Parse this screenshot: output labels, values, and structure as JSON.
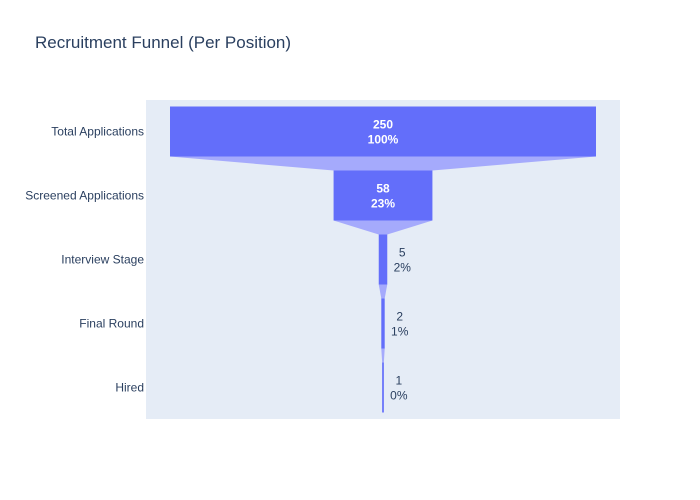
{
  "chart_data": {
    "type": "funnel",
    "title": "Recruitment Funnel (Per Position)",
    "categories": [
      "Total Applications",
      "Screened Applications",
      "Interview Stage",
      "Final Round",
      "Hired"
    ],
    "values": [
      250,
      58,
      5,
      2,
      1
    ],
    "percent_labels": [
      "100%",
      "23%",
      "2%",
      "1%",
      "0%"
    ],
    "bar_color": "#636efa",
    "connector_color": "#a5aafc",
    "plot_background": "#e5ecf6",
    "inside_text_color": "#ffffff",
    "outside_text_color": "#2a3f5f"
  }
}
